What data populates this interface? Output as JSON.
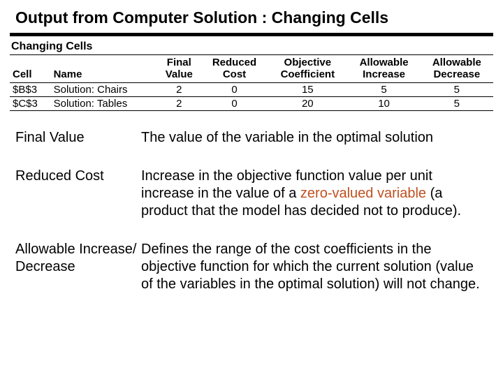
{
  "title": "Output from Computer Solution : Changing Cells",
  "section_heading": "Changing Cells",
  "table": {
    "columns": [
      {
        "l1": "",
        "l2": "Cell",
        "align": "left"
      },
      {
        "l1": "",
        "l2": "Name",
        "align": "left"
      },
      {
        "l1": "Final",
        "l2": "Value",
        "align": "center"
      },
      {
        "l1": "Reduced",
        "l2": "Cost",
        "align": "center"
      },
      {
        "l1": "Objective",
        "l2": "Coefficient",
        "align": "center"
      },
      {
        "l1": "Allowable",
        "l2": "Increase",
        "align": "center"
      },
      {
        "l1": "Allowable",
        "l2": "Decrease",
        "align": "center"
      }
    ],
    "rows": [
      {
        "cell": "$B$3",
        "name": "Solution: Chairs",
        "final": "2",
        "reduced": "0",
        "obj": "15",
        "inc": "5",
        "dec": "5"
      },
      {
        "cell": "$C$3",
        "name": "Solution: Tables",
        "final": "2",
        "reduced": "0",
        "obj": "20",
        "inc": "10",
        "dec": "5"
      }
    ]
  },
  "definitions": [
    {
      "term": "Final Value",
      "desc_pre": "The value of the variable in the optimal solution",
      "desc_hl": "",
      "desc_post": ""
    },
    {
      "term": "Reduced Cost",
      "desc_pre": "Increase in the objective function value per unit increase in the value of a ",
      "desc_hl": "zero-valued variable",
      "desc_post": " (a product that the model has decided  not to produce)."
    },
    {
      "term": "Allowable Increase/ Decrease",
      "desc_pre": "Defines the range of the cost coefficients in the objective function for which the current solution (value of the variables in the optimal solution) will not change.",
      "desc_hl": "",
      "desc_post": ""
    }
  ],
  "colors": {
    "text": "#000000",
    "highlight": "#c05020",
    "rule": "#000000",
    "background": "#ffffff"
  }
}
